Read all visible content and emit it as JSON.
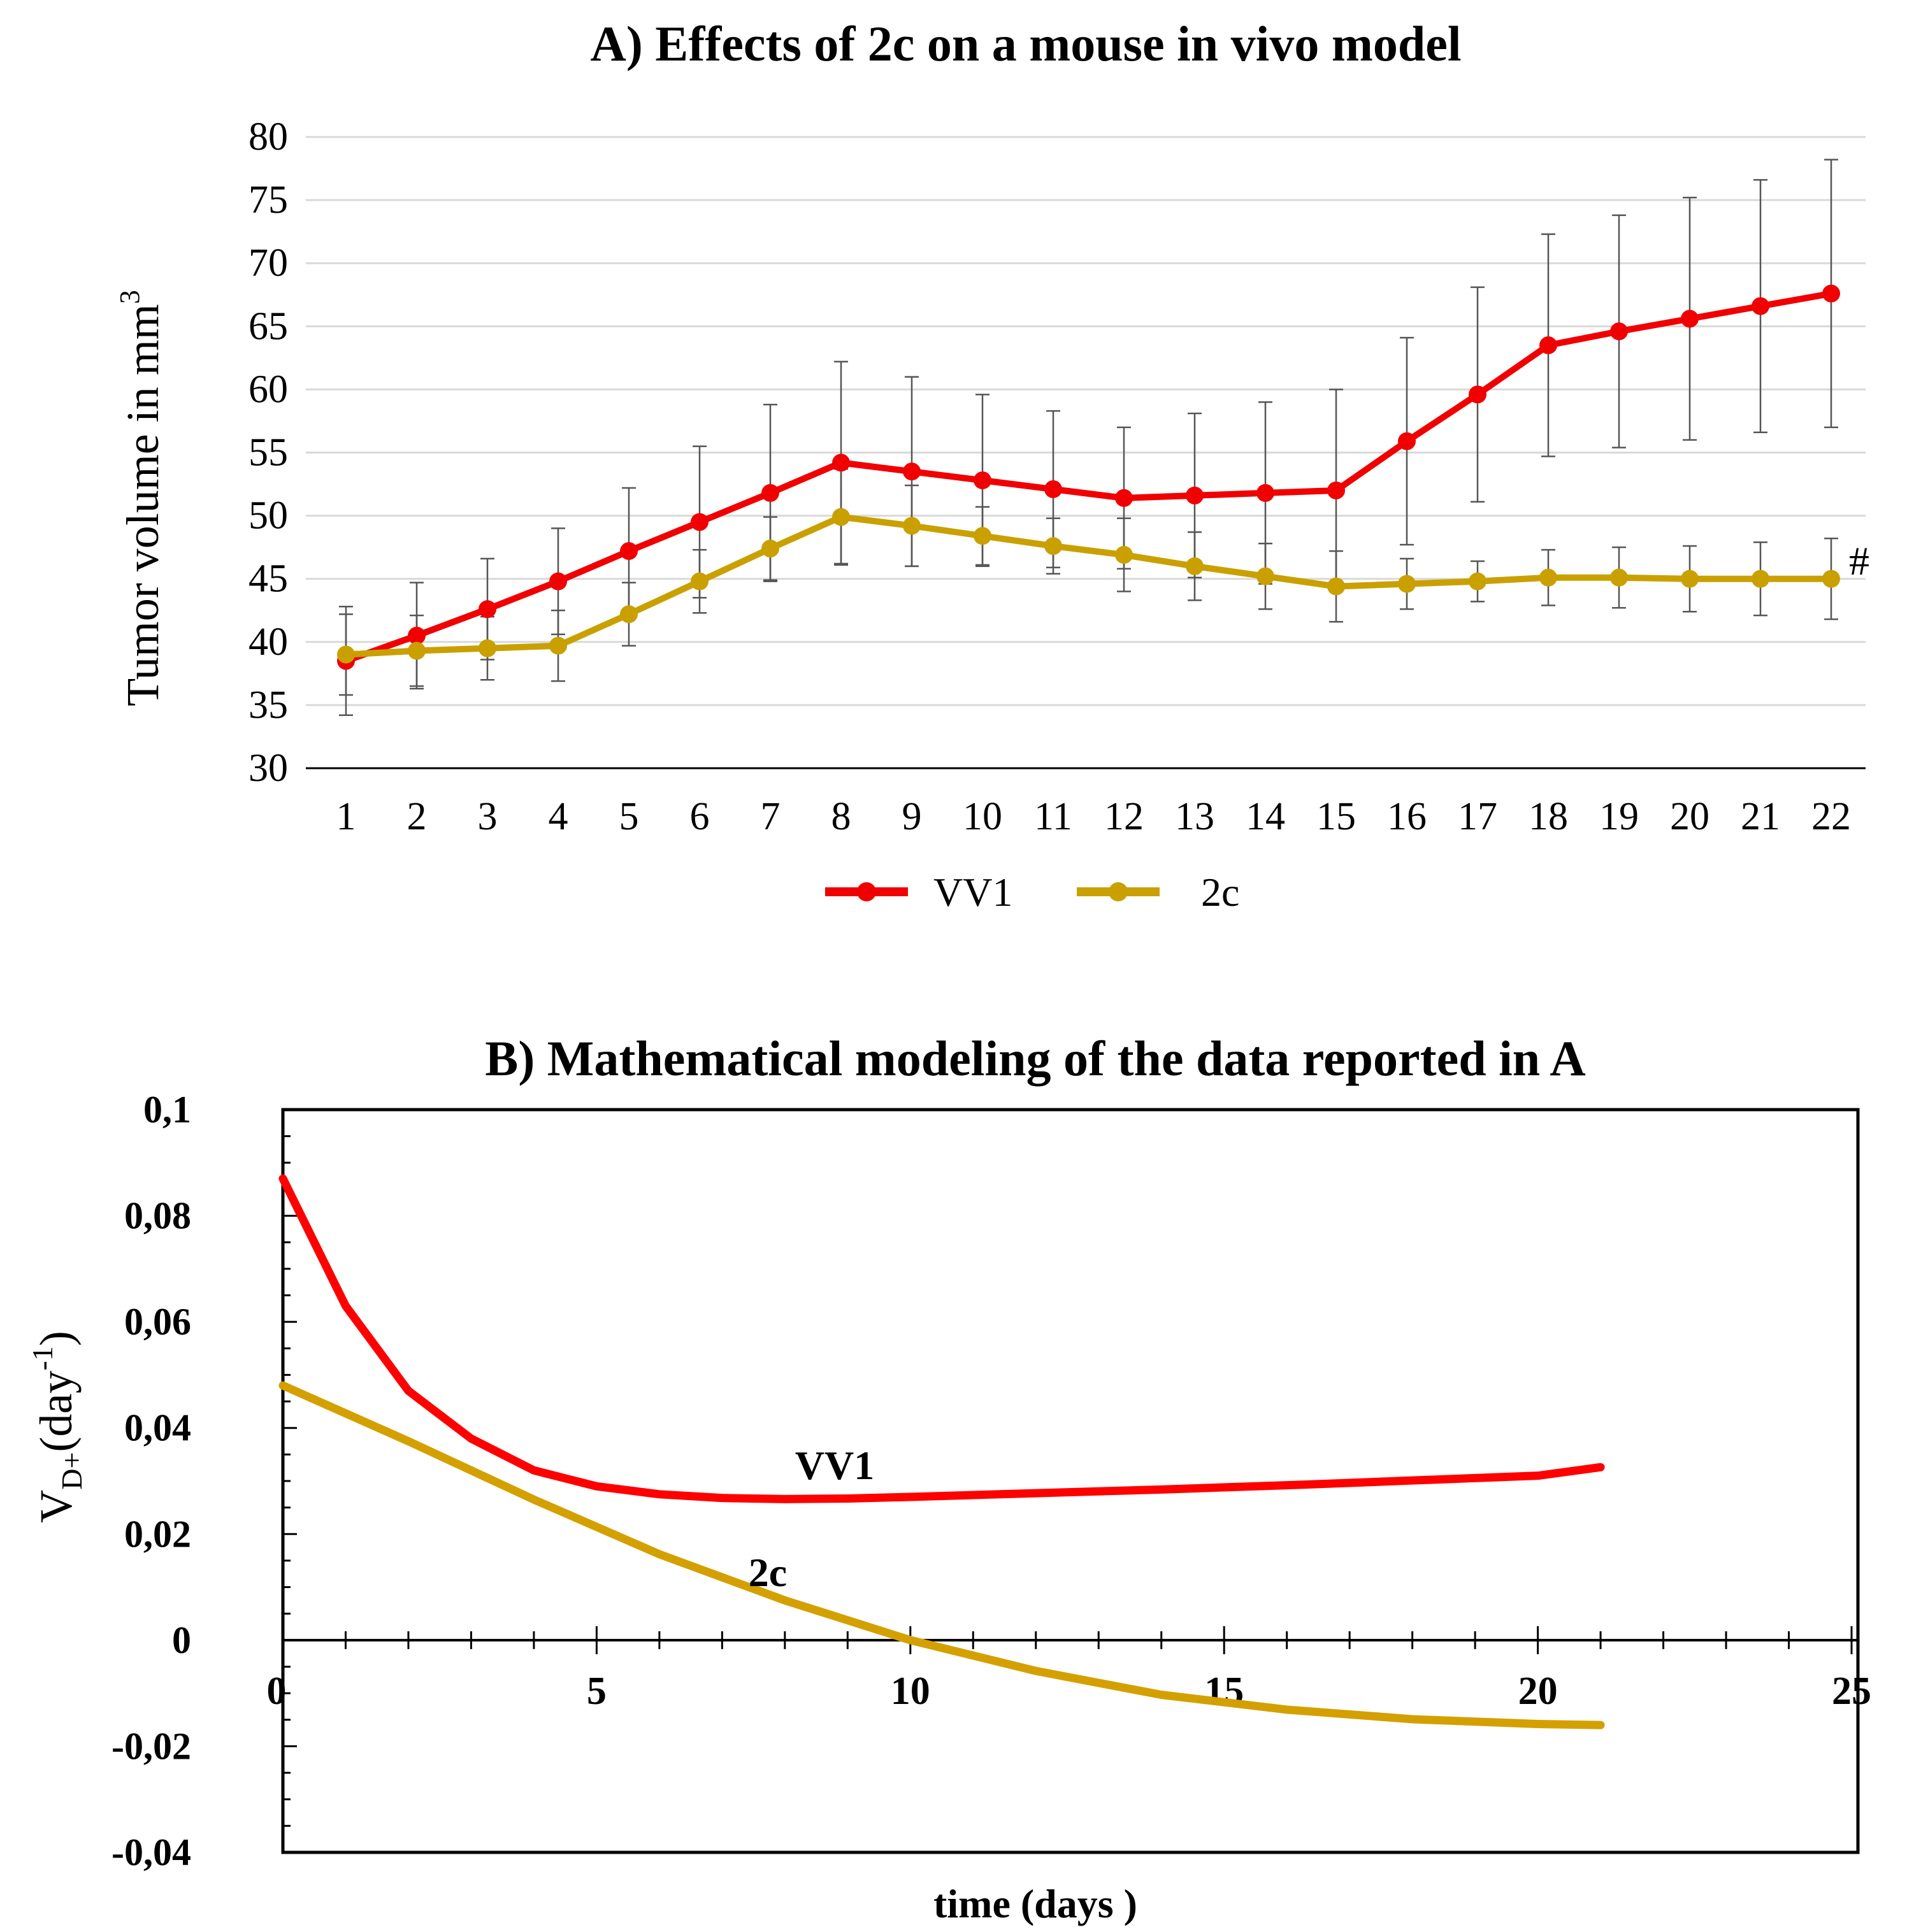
{
  "chart_data": [
    {
      "type": "line",
      "title": "A) Effects of 2c on a mouse in vivo model",
      "ylabel": "Tumor volume in mm",
      "ylabel_sup": "3",
      "xlabel": "",
      "x": [
        1,
        2,
        3,
        4,
        5,
        6,
        7,
        8,
        9,
        10,
        11,
        12,
        13,
        14,
        15,
        16,
        17,
        18,
        19,
        20,
        21,
        22
      ],
      "ylim": [
        30,
        80
      ],
      "yticks": [
        30,
        35,
        40,
        45,
        50,
        55,
        60,
        65,
        70,
        75,
        80
      ],
      "grid": true,
      "legend_position": "bottom",
      "annotation": "#",
      "series": [
        {
          "name": "VV1",
          "color": "#f00000",
          "values": [
            38.5,
            40.5,
            42.6,
            44.8,
            47.2,
            49.5,
            51.8,
            54.2,
            53.5,
            52.8,
            52.1,
            51.4,
            51.6,
            51.8,
            52.0,
            55.9,
            59.6,
            63.5,
            64.6,
            65.6,
            66.6,
            67.6
          ],
          "error": [
            4.3,
            4.2,
            4.0,
            4.2,
            5.0,
            6.0,
            7.0,
            8.0,
            7.5,
            6.8,
            6.2,
            5.6,
            6.5,
            7.2,
            8.0,
            8.2,
            8.5,
            8.8,
            9.2,
            9.6,
            10.0,
            10.6
          ]
        },
        {
          "name": "2c",
          "color": "#c9a000",
          "values": [
            39.0,
            39.3,
            39.5,
            39.7,
            42.2,
            44.8,
            47.4,
            49.9,
            49.2,
            48.4,
            47.6,
            46.9,
            46.0,
            45.2,
            44.4,
            44.6,
            44.8,
            45.1,
            45.1,
            45.0,
            45.0,
            45.0
          ],
          "error": [
            3.2,
            2.8,
            2.5,
            2.8,
            2.5,
            2.5,
            2.5,
            3.8,
            3.2,
            2.3,
            2.2,
            2.9,
            2.7,
            2.6,
            2.8,
            2.0,
            1.6,
            2.2,
            2.4,
            2.6,
            2.9,
            3.2
          ]
        }
      ]
    },
    {
      "type": "line",
      "title": "B) Mathematical modeling of the data  reported in A",
      "ylabel": "V",
      "ylabel_sub": "D+",
      "ylabel_unit_open": "(day",
      "ylabel_unit_sup": "-1",
      "ylabel_unit_close": ")",
      "xlabel": "time (days )",
      "xlim": [
        0,
        25
      ],
      "ylim": [
        -0.04,
        0.1
      ],
      "xticks": [
        "0",
        "5",
        "10",
        "15",
        "20",
        "25"
      ],
      "yticks": [
        "-0,04",
        "-0,02",
        "0",
        "0,02",
        "0,04",
        "0,06",
        "0,08",
        "0,1"
      ],
      "grid": false,
      "series": [
        {
          "name": "VV1",
          "color": "#ff0000",
          "x": [
            0,
            1,
            2,
            3,
            4,
            5,
            6,
            7,
            8,
            9,
            10,
            12,
            14,
            16,
            18,
            20,
            21
          ],
          "values": [
            0.087,
            0.063,
            0.047,
            0.038,
            0.032,
            0.029,
            0.0275,
            0.0268,
            0.0266,
            0.0267,
            0.027,
            0.0277,
            0.0284,
            0.0292,
            0.0301,
            0.031,
            0.0326
          ]
        },
        {
          "name": "2c",
          "color": "#d4a000",
          "x": [
            0,
            2,
            4,
            6,
            8,
            10,
            12,
            14,
            16,
            18,
            20,
            21
          ],
          "values": [
            0.048,
            0.0375,
            0.0265,
            0.0162,
            0.0075,
            0.0,
            -0.0058,
            -0.0103,
            -0.0131,
            -0.0149,
            -0.0158,
            -0.016
          ]
        }
      ]
    }
  ]
}
